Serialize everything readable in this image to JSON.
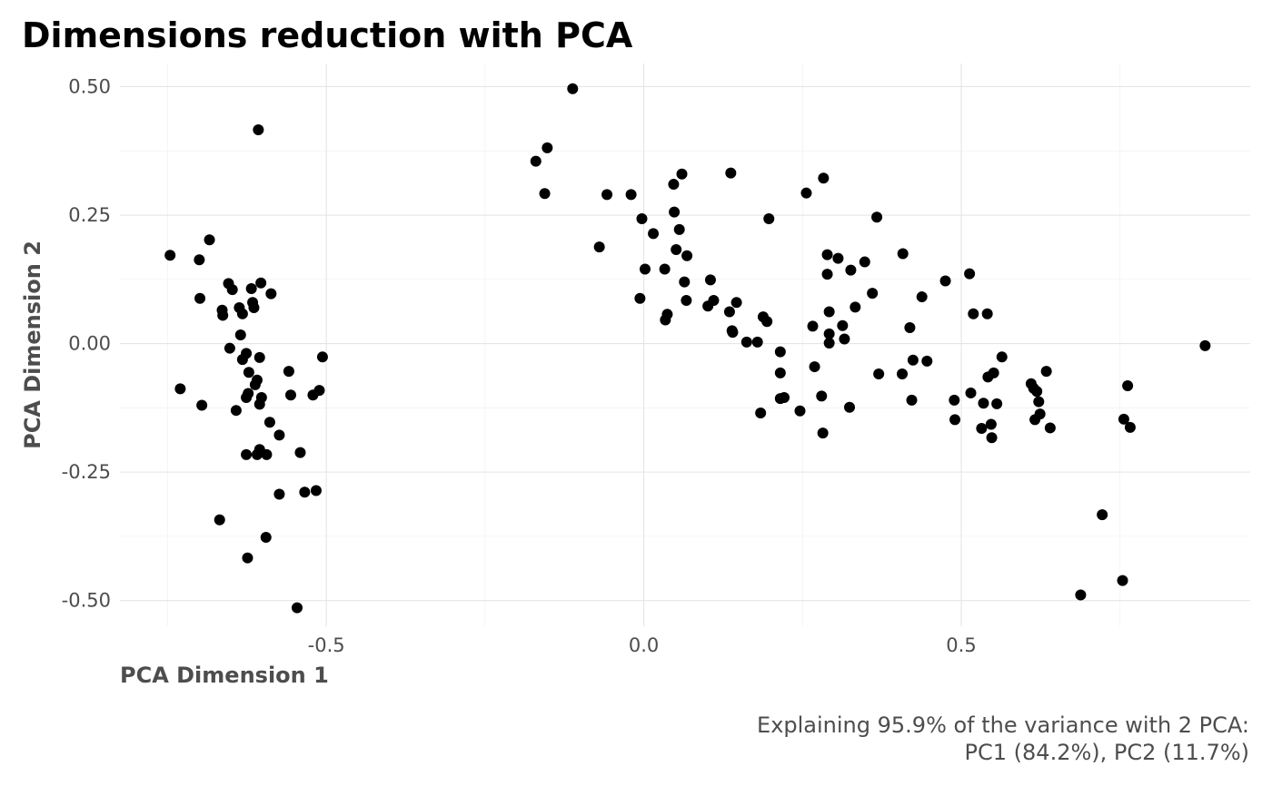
{
  "chart_data": {
    "type": "scatter",
    "title": "Dimensions reduction with PCA",
    "xlabel": "PCA Dimension 1",
    "ylabel": "PCA Dimension 2",
    "caption_lines": [
      "Explaining 95.9% of the variance with 2 PCA:",
      "PC1 (84.2%), PC2 (11.7%)"
    ],
    "xlim": [
      -0.825,
      0.955
    ],
    "ylim": [
      -0.55,
      0.545
    ],
    "x_ticks": [
      -0.5,
      0.0,
      0.5
    ],
    "x_tick_labels": [
      "-0.5",
      "0.0",
      "0.5"
    ],
    "x_minor": [
      -0.75,
      -0.25,
      0.25,
      0.75
    ],
    "y_ticks": [
      0.5,
      0.25,
      0.0,
      -0.25,
      -0.5
    ],
    "y_tick_labels": [
      "0.50",
      "0.25",
      "0.00",
      "-0.25",
      "-0.50"
    ],
    "y_minor": [
      0.375,
      0.125,
      -0.125,
      -0.375
    ],
    "grid": true,
    "point_color": "#000000",
    "points": [
      [
        -0.607,
        0.416
      ],
      [
        -0.684,
        0.202
      ],
      [
        -0.746,
        0.172
      ],
      [
        -0.7,
        0.163
      ],
      [
        -0.654,
        0.117
      ],
      [
        -0.648,
        0.105
      ],
      [
        -0.618,
        0.107
      ],
      [
        -0.603,
        0.118
      ],
      [
        -0.587,
        0.097
      ],
      [
        -0.699,
        0.088
      ],
      [
        -0.616,
        0.08
      ],
      [
        -0.614,
        0.07
      ],
      [
        -0.637,
        0.07
      ],
      [
        -0.664,
        0.065
      ],
      [
        -0.663,
        0.055
      ],
      [
        -0.632,
        0.058
      ],
      [
        -0.635,
        0.017
      ],
      [
        -0.652,
        -0.009
      ],
      [
        -0.626,
        -0.019
      ],
      [
        -0.605,
        -0.027
      ],
      [
        -0.632,
        -0.031
      ],
      [
        -0.622,
        -0.056
      ],
      [
        -0.609,
        -0.071
      ],
      [
        -0.612,
        -0.08
      ],
      [
        -0.73,
        -0.088
      ],
      [
        -0.623,
        -0.097
      ],
      [
        -0.626,
        -0.105
      ],
      [
        -0.602,
        -0.105
      ],
      [
        -0.605,
        -0.118
      ],
      [
        -0.696,
        -0.12
      ],
      [
        -0.642,
        -0.13
      ],
      [
        -0.589,
        -0.153
      ],
      [
        -0.574,
        -0.178
      ],
      [
        -0.605,
        -0.206
      ],
      [
        -0.626,
        -0.216
      ],
      [
        -0.609,
        -0.216
      ],
      [
        -0.594,
        -0.216
      ],
      [
        -0.559,
        -0.054
      ],
      [
        -0.556,
        -0.1
      ],
      [
        -0.521,
        -0.1
      ],
      [
        -0.506,
        -0.026
      ],
      [
        -0.511,
        -0.091
      ],
      [
        -0.541,
        -0.212
      ],
      [
        -0.574,
        -0.293
      ],
      [
        -0.534,
        -0.289
      ],
      [
        -0.516,
        -0.286
      ],
      [
        -0.668,
        -0.343
      ],
      [
        -0.595,
        -0.377
      ],
      [
        -0.624,
        -0.417
      ],
      [
        -0.546,
        -0.514
      ],
      [
        -0.112,
        0.496
      ],
      [
        -0.152,
        0.381
      ],
      [
        -0.17,
        0.355
      ],
      [
        -0.156,
        0.292
      ],
      [
        -0.058,
        0.29
      ],
      [
        -0.02,
        0.29
      ],
      [
        -0.07,
        0.188
      ],
      [
        -0.003,
        0.243
      ],
      [
        0.015,
        0.214
      ],
      [
        0.002,
        0.145
      ],
      [
        -0.006,
        0.088
      ],
      [
        0.033,
        0.145
      ],
      [
        0.037,
        0.057
      ],
      [
        0.034,
        0.046
      ],
      [
        0.047,
        0.31
      ],
      [
        0.06,
        0.33
      ],
      [
        0.048,
        0.256
      ],
      [
        0.056,
        0.222
      ],
      [
        0.051,
        0.183
      ],
      [
        0.068,
        0.171
      ],
      [
        0.064,
        0.12
      ],
      [
        0.067,
        0.084
      ],
      [
        0.105,
        0.124
      ],
      [
        0.11,
        0.084
      ],
      [
        0.101,
        0.073
      ],
      [
        0.137,
        0.332
      ],
      [
        0.135,
        0.062
      ],
      [
        0.146,
        0.08
      ],
      [
        0.139,
        0.025
      ],
      [
        0.14,
        0.022
      ],
      [
        0.162,
        0.003
      ],
      [
        0.179,
        0.003
      ],
      [
        0.197,
        0.243
      ],
      [
        0.188,
        0.052
      ],
      [
        0.194,
        0.043
      ],
      [
        0.215,
        -0.016
      ],
      [
        0.215,
        -0.057
      ],
      [
        0.215,
        -0.107
      ],
      [
        0.221,
        -0.105
      ],
      [
        0.184,
        -0.135
      ],
      [
        0.246,
        -0.131
      ],
      [
        0.256,
        0.293
      ],
      [
        0.283,
        0.322
      ],
      [
        0.266,
        0.034
      ],
      [
        0.269,
        -0.045
      ],
      [
        0.28,
        -0.102
      ],
      [
        0.282,
        -0.174
      ],
      [
        0.289,
        0.173
      ],
      [
        0.289,
        0.135
      ],
      [
        0.292,
        0.062
      ],
      [
        0.292,
        0.019
      ],
      [
        0.292,
        0.001
      ],
      [
        0.306,
        0.166
      ],
      [
        0.326,
        0.143
      ],
      [
        0.333,
        0.071
      ],
      [
        0.313,
        0.035
      ],
      [
        0.316,
        0.009
      ],
      [
        0.324,
        -0.124
      ],
      [
        0.348,
        0.159
      ],
      [
        0.36,
        0.098
      ],
      [
        0.367,
        0.246
      ],
      [
        0.37,
        -0.059
      ],
      [
        0.408,
        0.175
      ],
      [
        0.419,
        0.031
      ],
      [
        0.424,
        -0.032
      ],
      [
        0.422,
        -0.11
      ],
      [
        0.407,
        -0.059
      ],
      [
        0.438,
        0.091
      ],
      [
        0.446,
        -0.034
      ],
      [
        0.475,
        0.122
      ],
      [
        0.489,
        -0.11
      ],
      [
        0.49,
        -0.148
      ],
      [
        0.513,
        0.136
      ],
      [
        0.519,
        0.058
      ],
      [
        0.515,
        -0.096
      ],
      [
        0.541,
        0.058
      ],
      [
        0.542,
        -0.065
      ],
      [
        0.551,
        -0.057
      ],
      [
        0.556,
        -0.117
      ],
      [
        0.564,
        -0.026
      ],
      [
        0.535,
        -0.116
      ],
      [
        0.532,
        -0.165
      ],
      [
        0.547,
        -0.157
      ],
      [
        0.548,
        -0.183
      ],
      [
        0.61,
        -0.078
      ],
      [
        0.614,
        -0.087
      ],
      [
        0.619,
        -0.093
      ],
      [
        0.622,
        -0.113
      ],
      [
        0.624,
        -0.137
      ],
      [
        0.616,
        -0.148
      ],
      [
        0.634,
        -0.054
      ],
      [
        0.64,
        -0.164
      ],
      [
        0.756,
        -0.147
      ],
      [
        0.762,
        -0.082
      ],
      [
        0.766,
        -0.163
      ],
      [
        0.884,
        -0.004
      ],
      [
        0.722,
        -0.333
      ],
      [
        0.688,
        -0.489
      ],
      [
        0.754,
        -0.461
      ]
    ]
  }
}
